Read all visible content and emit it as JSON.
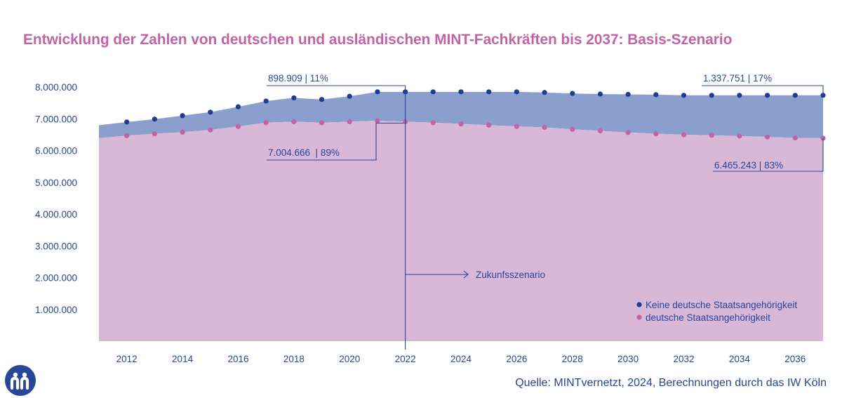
{
  "title": "Entwicklung der Zahlen von deutschen und ausländischen MINT-Fachkräften bis 2037: Basis-Szenario",
  "source": "Quelle: MINTvernetzt, 2024, Berechnungen durch das IW Köln",
  "logo_icon": "mintvernetzt-logo-icon",
  "colors": {
    "title": "#c064a6",
    "text": "#26469a",
    "area_total": "#8b9fce",
    "area_german": "#d8b7d7",
    "dot_foreign": "#1f3c91",
    "dot_german": "#c064a6"
  },
  "chart_data": {
    "type": "area",
    "x": [
      2011,
      2012,
      2013,
      2014,
      2015,
      2016,
      2017,
      2018,
      2019,
      2020,
      2021,
      2022,
      2023,
      2024,
      2025,
      2026,
      2027,
      2028,
      2029,
      2030,
      2031,
      2032,
      2033,
      2034,
      2035,
      2036,
      2037
    ],
    "x_tick_labels": [
      "2012",
      "2014",
      "2016",
      "2018",
      "2020",
      "2022",
      "2024",
      "2026",
      "2028",
      "2030",
      "2032",
      "2034",
      "2036"
    ],
    "y_tick_labels": [
      "1.000.000",
      "2.000.000",
      "3.000.000",
      "4.000.000",
      "5.000.000",
      "6.000.000",
      "7.000.000",
      "8.000.000"
    ],
    "ylim": [
      0,
      8200000
    ],
    "series": [
      {
        "name": "Keine deutsche Staatsangehörigkeit",
        "stacked_total": [
          6800000,
          6900000,
          6990000,
          7100000,
          7210000,
          7380000,
          7560000,
          7660000,
          7610000,
          7710000,
          7850000,
          7850000,
          7850000,
          7850000,
          7850000,
          7850000,
          7830000,
          7800000,
          7780000,
          7770000,
          7760000,
          7740000,
          7740000,
          7740000,
          7740000,
          7740000,
          7740000
        ]
      },
      {
        "name": "deutsche Staatsangehörigkeit",
        "values": [
          6390000,
          6470000,
          6530000,
          6580000,
          6650000,
          6760000,
          6880000,
          6910000,
          6880000,
          6910000,
          6940000,
          6910000,
          6880000,
          6840000,
          6800000,
          6760000,
          6730000,
          6670000,
          6620000,
          6570000,
          6530000,
          6500000,
          6480000,
          6460000,
          6430000,
          6400000,
          6390000
        ]
      }
    ],
    "annotations": [
      {
        "text": "898.909 | 11%"
      },
      {
        "text": "7.004.666  | 89%"
      },
      {
        "text": "1.337.751 | 17%"
      },
      {
        "text": "6.465.243 | 83%"
      },
      {
        "text": "Zukunfsszenario"
      }
    ],
    "legend": {
      "position": "bottom-right",
      "items": [
        "Keine deutsche Staatsangehörigkeit",
        "deutsche Staatsangehörigkeit"
      ]
    }
  }
}
